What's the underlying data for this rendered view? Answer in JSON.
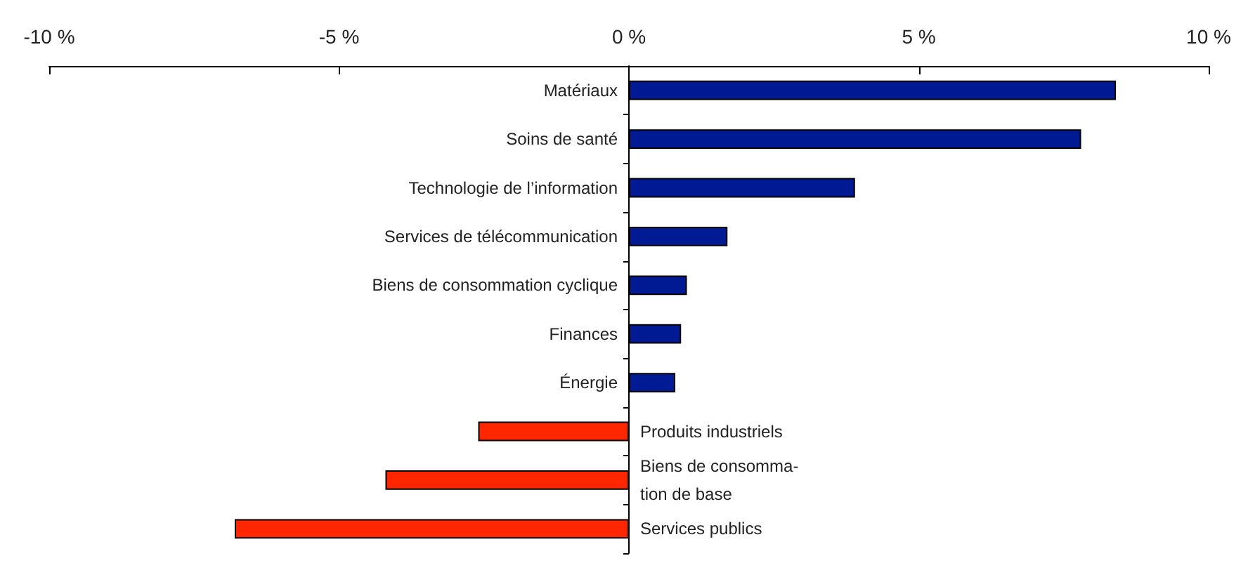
{
  "chart_data": {
    "type": "bar",
    "orientation": "horizontal",
    "categories": [
      "Matériaux",
      "Soins de santé",
      "Technologie de l’information",
      "Services de télécommunication",
      "Biens de consommation cyclique",
      "Finances",
      "Énergie",
      "Produits industriels",
      "Biens de consomma-\ntion de base",
      "Services publics"
    ],
    "values": [
      8.4,
      7.8,
      3.9,
      1.7,
      1.0,
      0.9,
      0.8,
      -2.6,
      -4.2,
      -6.8
    ],
    "colors": [
      "#001a94",
      "#001a94",
      "#001a94",
      "#001a94",
      "#001a94",
      "#001a94",
      "#001a94",
      "#ff2600",
      "#ff2600",
      "#ff2600"
    ],
    "xlim": [
      -10,
      10
    ],
    "xticks": [
      {
        "value": -10,
        "label": "-10 %"
      },
      {
        "value": -5,
        "label": "-5 %"
      },
      {
        "value": 0,
        "label": "0 %"
      },
      {
        "value": 5,
        "label": "5 %"
      },
      {
        "value": 10,
        "label": "10 %"
      }
    ],
    "data_labels": false
  }
}
